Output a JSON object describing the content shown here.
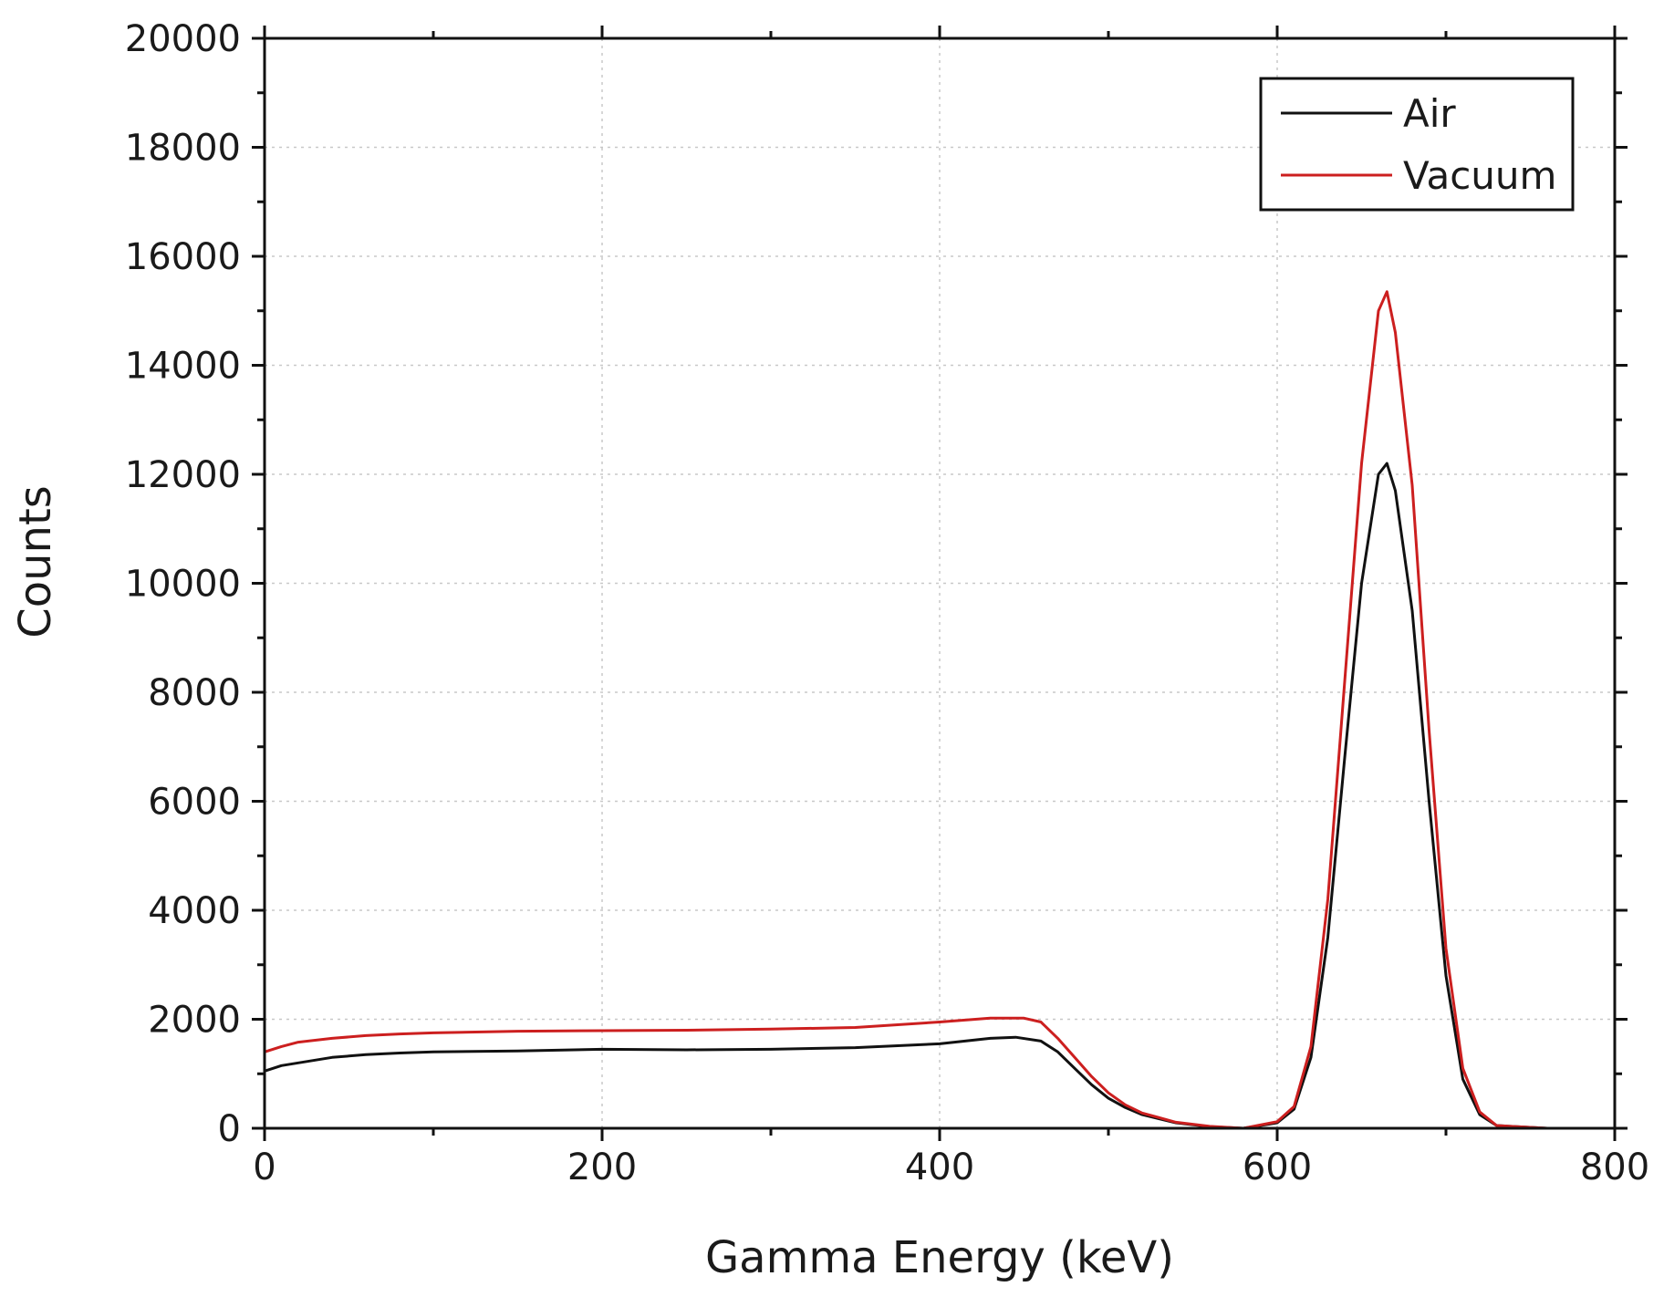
{
  "chart_data": {
    "type": "line",
    "title": "",
    "xlabel": "Gamma Energy (keV)",
    "ylabel": "Counts",
    "xlim": [
      0,
      800
    ],
    "ylim": [
      0,
      20000
    ],
    "xticks": [
      0,
      200,
      400,
      600,
      800
    ],
    "xtick_labels": [
      "0",
      "200",
      "400",
      "600",
      "800"
    ],
    "yticks": [
      0,
      2000,
      4000,
      6000,
      8000,
      10000,
      12000,
      14000,
      16000,
      18000,
      20000
    ],
    "ytick_labels": [
      "0",
      "2000",
      "4000",
      "6000",
      "8000",
      "10000",
      "12000",
      "14000",
      "16000",
      "18000",
      "20000"
    ],
    "grid": true,
    "legend_position": "top-right",
    "series": [
      {
        "name": "Air",
        "color": "#111111",
        "x": [
          0,
          10,
          20,
          40,
          60,
          80,
          100,
          150,
          200,
          250,
          300,
          350,
          400,
          430,
          445,
          460,
          470,
          480,
          490,
          500,
          510,
          520,
          540,
          560,
          580,
          600,
          610,
          620,
          630,
          640,
          650,
          660,
          665,
          670,
          680,
          690,
          700,
          710,
          720,
          730,
          760,
          800
        ],
        "y": [
          1050,
          1150,
          1200,
          1300,
          1350,
          1380,
          1400,
          1420,
          1450,
          1440,
          1450,
          1480,
          1550,
          1650,
          1670,
          1600,
          1400,
          1100,
          800,
          550,
          380,
          250,
          100,
          30,
          0,
          100,
          350,
          1300,
          3500,
          6800,
          10000,
          12000,
          12200,
          11700,
          9500,
          6000,
          2800,
          900,
          250,
          50,
          0,
          0
        ]
      },
      {
        "name": "Vacuum",
        "color": "#cc1f1f",
        "x": [
          0,
          10,
          20,
          40,
          60,
          80,
          100,
          150,
          200,
          250,
          300,
          350,
          400,
          430,
          450,
          460,
          470,
          480,
          490,
          500,
          510,
          520,
          540,
          560,
          580,
          600,
          610,
          620,
          630,
          640,
          650,
          660,
          665,
          670,
          680,
          690,
          700,
          710,
          720,
          730,
          760,
          800
        ],
        "y": [
          1400,
          1500,
          1580,
          1650,
          1700,
          1730,
          1750,
          1780,
          1790,
          1800,
          1820,
          1850,
          1950,
          2020,
          2020,
          1950,
          1650,
          1300,
          950,
          650,
          430,
          280,
          110,
          35,
          0,
          120,
          400,
          1500,
          4200,
          8200,
          12200,
          15000,
          15350,
          14600,
          11800,
          7300,
          3300,
          1100,
          300,
          50,
          0,
          0
        ]
      }
    ]
  }
}
